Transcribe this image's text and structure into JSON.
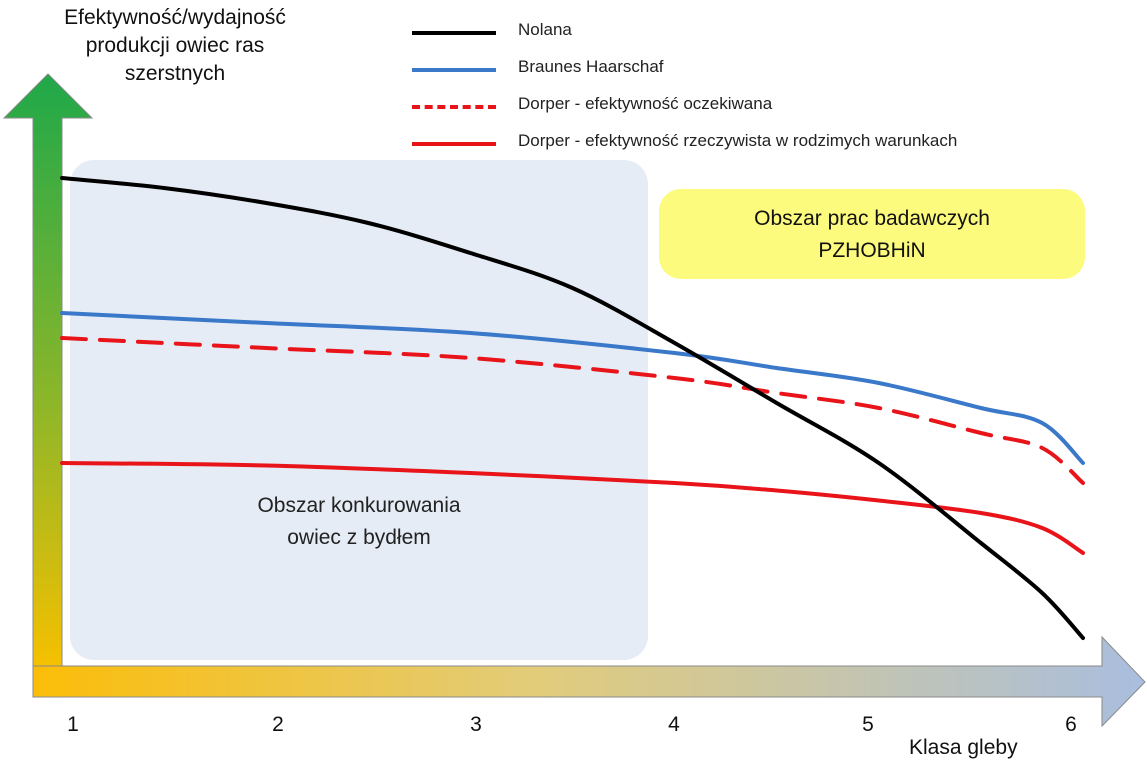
{
  "chart_data": {
    "type": "line",
    "ylabel": "Efektywność/wydajność\nprodukcji owiec ras\nszerstnych",
    "xlabel": "Klasa gleby",
    "x_ticks": [
      "1",
      "2",
      "3",
      "4",
      "5",
      "6"
    ],
    "xlim": [
      1,
      6
    ],
    "ylim": [
      0,
      100
    ],
    "grid": false,
    "legend_position": "top",
    "series": [
      {
        "name": "Nolana",
        "color": "#000000",
        "dash": "solid",
        "x": [
          1,
          1.5,
          2,
          2.5,
          3,
          3.5,
          4,
          4.5,
          5,
          5.5,
          5.8,
          6
        ],
        "y": [
          95,
          93,
          90,
          86,
          80,
          73,
          62,
          50,
          38,
          22,
          12,
          3
        ]
      },
      {
        "name": "Braunes Haarschaf",
        "color": "#3a78c9",
        "dash": "solid",
        "x": [
          1,
          2,
          3,
          4,
          4.5,
          5,
          5.5,
          5.8,
          6
        ],
        "y": [
          68,
          66,
          64,
          60,
          57,
          54,
          49,
          46,
          38
        ]
      },
      {
        "name": "Dorper - efektywność oczekiwana",
        "color": "#e8141a",
        "dash": "dashed",
        "x": [
          1,
          2,
          3,
          4,
          4.5,
          5,
          5.5,
          5.8,
          6
        ],
        "y": [
          63,
          61,
          59,
          55,
          52,
          49,
          44,
          41,
          34
        ]
      },
      {
        "name": "Dorper - efektywność rzeczywista w rodzimych warunkach",
        "color": "#e8141a",
        "dash": "solid",
        "x": [
          1,
          2,
          3,
          4,
          4.5,
          5,
          5.5,
          5.8,
          6
        ],
        "y": [
          38,
          37.5,
          36,
          34,
          32.5,
          30.5,
          28,
          25,
          20
        ]
      }
    ],
    "annotations": [
      {
        "text": "Obszar konkurowania\nowiec z bydłem",
        "x_range": [
          1,
          3.85
        ]
      },
      {
        "text": "Obszar prac badawczych\nPZHOBHiN",
        "x_range": [
          3.95,
          6
        ]
      }
    ]
  }
}
